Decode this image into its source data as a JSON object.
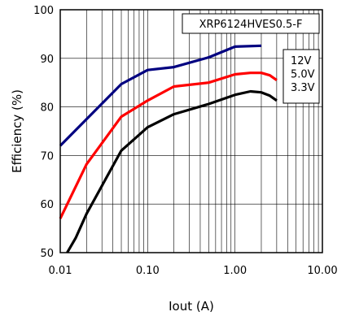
{
  "chart_data": {
    "type": "line",
    "title": "XRP6124HVES0.5-F",
    "xlabel": "Iout (A)",
    "ylabel": "Efficiency (%)",
    "xscale": "log",
    "xlim": [
      0.01,
      10
    ],
    "ylim": [
      50,
      100
    ],
    "x_ticks": [
      0.01,
      0.1,
      1,
      10
    ],
    "x_tick_labels": [
      "0.01",
      "0.10",
      "1.00",
      "10.00"
    ],
    "y_ticks": [
      50,
      60,
      70,
      80,
      90,
      100
    ],
    "y_tick_labels": [
      "50",
      "60",
      "70",
      "80",
      "90",
      "100"
    ],
    "grid": true,
    "legend_position": "right",
    "series": [
      {
        "name": "12V",
        "color": "#000080",
        "x": [
          0.01,
          0.05,
          0.1,
          0.2,
          0.5,
          1.0,
          2.0
        ],
        "y": [
          72.0,
          84.7,
          87.6,
          88.2,
          90.2,
          92.4,
          92.6
        ]
      },
      {
        "name": "5.0V",
        "color": "#ff0000",
        "x": [
          0.01,
          0.02,
          0.05,
          0.1,
          0.2,
          0.5,
          1.0,
          1.5,
          2.0,
          2.5,
          3.0
        ],
        "y": [
          57.0,
          68.2,
          78.0,
          81.3,
          84.2,
          85.0,
          86.7,
          87.0,
          87.0,
          86.5,
          85.5
        ]
      },
      {
        "name": "3.3V",
        "color": "#000000",
        "x": [
          0.012,
          0.015,
          0.02,
          0.05,
          0.1,
          0.2,
          0.5,
          1.0,
          1.5,
          2.0,
          2.5,
          3.0
        ],
        "y": [
          50.0,
          53.0,
          58.0,
          71.0,
          75.8,
          78.5,
          80.6,
          82.5,
          83.2,
          83.0,
          82.3,
          81.3
        ]
      }
    ]
  }
}
